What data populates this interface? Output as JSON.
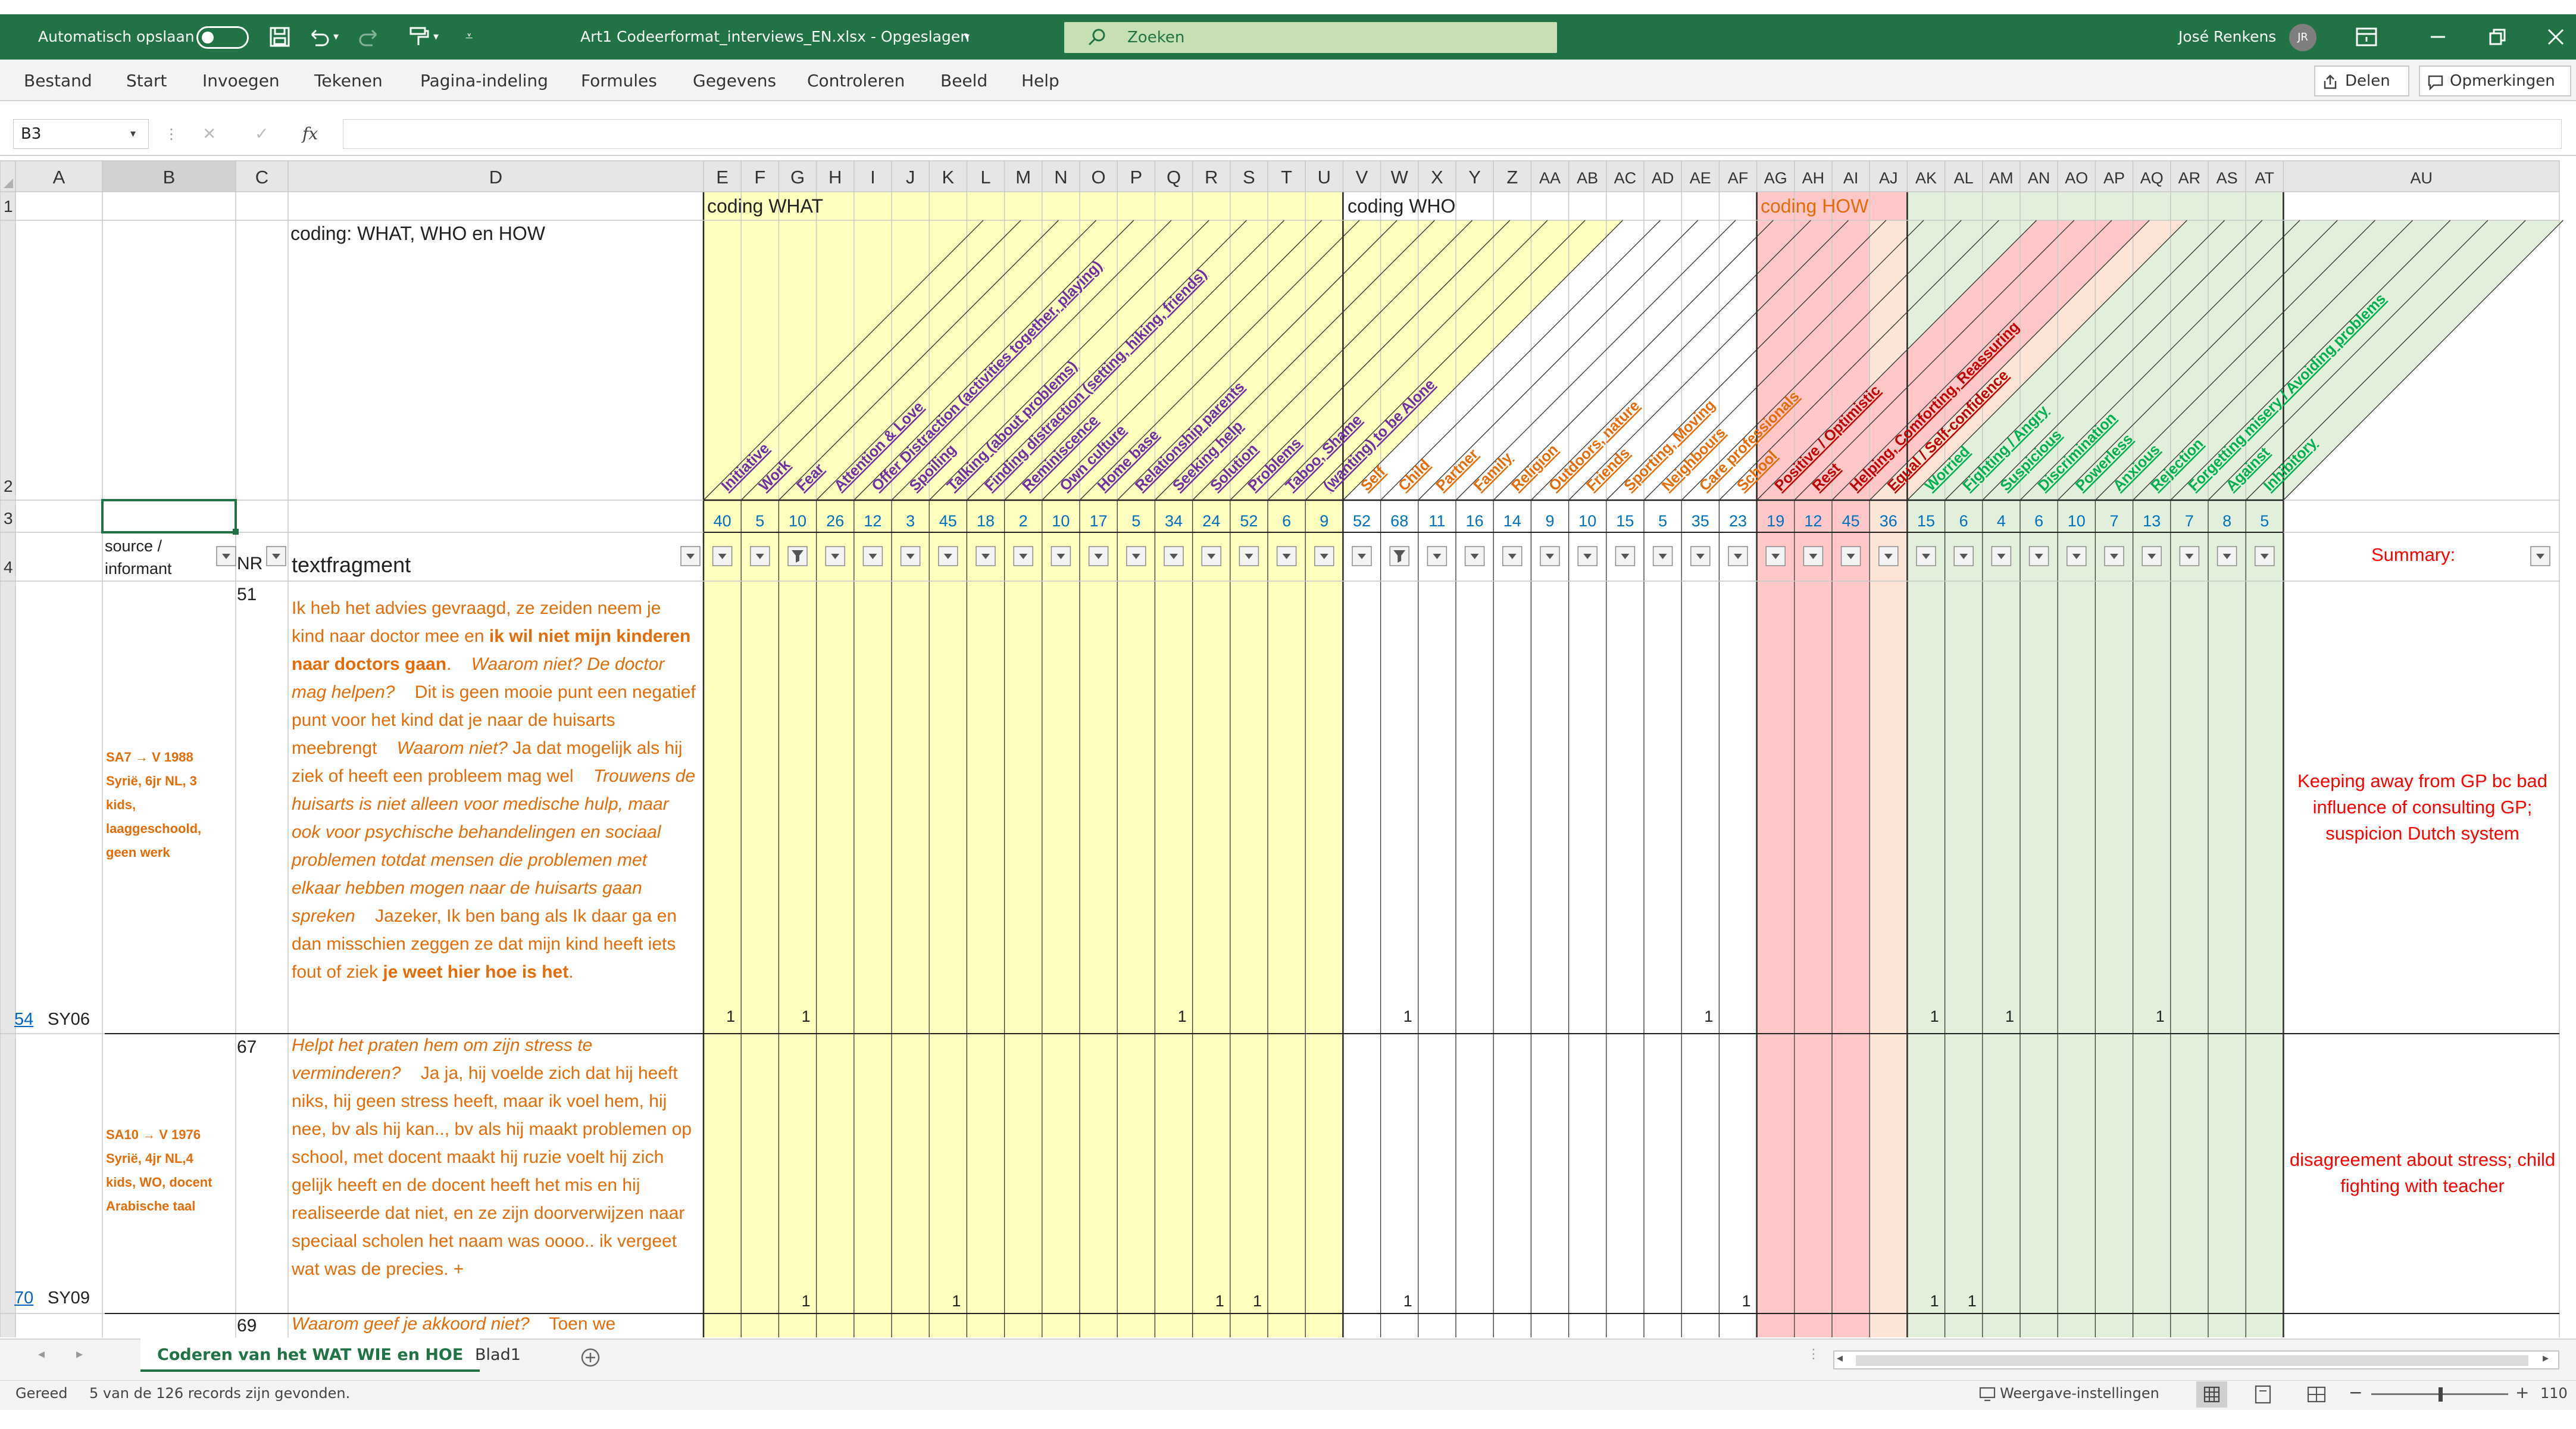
{
  "titlebar": {
    "autosave_label": "Automatisch opslaan",
    "autosave_state": "Uit",
    "file_title": "Art1 Codeerformat_interviews_EN.xlsx  -  Opgeslagen",
    "search_placeholder": "Zoeken",
    "user_name": "José Renkens",
    "user_initials": "JR"
  },
  "ribbon": {
    "tabs": [
      "Bestand",
      "Start",
      "Invoegen",
      "Tekenen",
      "Pagina-indeling",
      "Formules",
      "Gegevens",
      "Controleren",
      "Beeld",
      "Help"
    ],
    "share_label": "Delen",
    "comments_label": "Opmerkingen"
  },
  "formula_bar": {
    "name_box": "B3",
    "fx_label": "fx",
    "formula": ""
  },
  "column_letters": [
    "A",
    "B",
    "C",
    "D",
    "E",
    "F",
    "G",
    "H",
    "I",
    "J",
    "K",
    "L",
    "M",
    "N",
    "O",
    "P",
    "Q",
    "R",
    "S",
    "T",
    "U",
    "V",
    "W",
    "X",
    "Y",
    "Z",
    "AA",
    "AB",
    "AC",
    "AD",
    "AE",
    "AF",
    "AG",
    "AH",
    "AI",
    "AJ",
    "AK",
    "AL",
    "AM",
    "AN",
    "AO",
    "AP",
    "AQ",
    "AR",
    "AS",
    "AT",
    "AU"
  ],
  "row_numbers": {
    "r1": "1",
    "r2": "2",
    "r3": "3",
    "r4": "4",
    "r54": "54",
    "r70": "70"
  },
  "sheet": {
    "coding_what": "coding WHAT",
    "coding_who": "coding WHO",
    "coding_how": "coding HOW",
    "d2_title": "coding: WHAT, WHO en HOW",
    "header_source": "source /\ninformant",
    "header_nr": "NR",
    "header_textfragment": "textfragment",
    "header_summary": "Summary:",
    "code_labels": [
      "Initiative",
      "Work",
      "Fear",
      "Attention & Love",
      "Offer Distraction (activities together, playing)",
      "Spoiling",
      "Talking (about problems)",
      "Finding distraction (setting, hiking, friends)",
      "Reminiscence",
      "Own culture",
      "Home base",
      "Relationship parents",
      "Seeking help",
      "Solution",
      "Problems",
      "Taboo, Shame",
      "(wanting) to be Alone",
      "Self",
      "Child",
      "Partner",
      "Family",
      "Religion",
      "Outdoors, nature",
      "Friends",
      "Sporting, Moving",
      "Neighbours",
      "Care professionals",
      "School",
      "Positive / Optimistic",
      "Rest",
      "Helping, Comforting, Reassuring",
      "Equal / Self-confidence",
      "Worried",
      "Fighting / Angry",
      "Suspicious",
      "Discrimination",
      "Powerless",
      "Anxious",
      "Rejection",
      "Forgetting misery / Avoiding problems",
      "Against",
      "Inhibitory"
    ],
    "totals": [
      "40",
      "5",
      "10",
      "26",
      "12",
      "3",
      "45",
      "18",
      "2",
      "10",
      "17",
      "5",
      "34",
      "24",
      "52",
      "6",
      "9",
      "52",
      "68",
      "11",
      "16",
      "14",
      "9",
      "10",
      "15",
      "5",
      "35",
      "23",
      "19",
      "12",
      "45",
      "36",
      "15",
      "6",
      "4",
      "6",
      "10",
      "7",
      "13",
      "7",
      "8",
      "5"
    ],
    "record1": {
      "row_label": "54",
      "code": "SY06",
      "nr": "51",
      "source": "SA7 → V 1988\nSyrië, 6jr NL, 3\nkids,\nlaaggeschoold,\ngeen werk",
      "text_parts": [
        {
          "style": "n",
          "t": "Ik heb het advies gevraagd, ze zeiden neem je kind naar doctor mee en "
        },
        {
          "style": "b",
          "t": "ik wil niet mijn kinderen naar doctors gaan"
        },
        {
          "style": "n",
          "t": ".    "
        },
        {
          "style": "i",
          "t": "Waarom niet? De doctor mag helpen?"
        },
        {
          "style": "n",
          "t": "    Dit is geen mooie punt een negatief punt voor het kind dat je naar de huisarts meebrengt    "
        },
        {
          "style": "i",
          "t": "Waarom niet?"
        },
        {
          "style": "n",
          "t": " Ja dat mogelijk als hij ziek of heeft een probleem mag wel    "
        },
        {
          "style": "i",
          "t": "Trouwens de huisarts is niet alleen voor medische hulp, maar ook voor psychische behandelingen en sociaal problemen totdat mensen die problemen met elkaar hebben mogen naar de huisarts gaan spreken"
        },
        {
          "style": "n",
          "t": "    Jazeker, Ik ben bang als Ik daar ga en dan misschien zeggen ze dat mijn kind heeft iets fout of ziek "
        },
        {
          "style": "b",
          "t": "je weet hier hoe is het"
        },
        {
          "style": "n",
          "t": "."
        }
      ],
      "summary": "Keeping away from GP bc bad influence of consulting GP; suspicion Dutch system",
      "marks": {
        "E": "1",
        "G": "1",
        "Q": "1",
        "W": "1",
        "AE": "1",
        "AK": "1",
        "AM": "1",
        "AQ": "1"
      }
    },
    "record2": {
      "row_label": "70",
      "code": "SY09",
      "nr": "67",
      "source": "SA10 → V 1976\nSyrië, 4jr NL,4\nkids, WO, docent\nArabische taal",
      "text_parts": [
        {
          "style": "i",
          "t": "Helpt het praten hem om zijn stress te verminderen?"
        },
        {
          "style": "n",
          "t": "    Ja ja, hij voelde zich dat hij heeft niks, hij geen stress heeft, maar ik voel hem, hij nee, bv als hij kan.., bv als hij maakt problemen op school, met docent maakt hij ruzie voelt hij zich gelijk heeft en de docent heeft het mis en hij realiseerde dat niet, en ze zijn doorverwijzen naar speciaal scholen het naam was oooo.. ik vergeet wat was de precies. +"
        }
      ],
      "summary": "disagreement about stress; child fighting with teacher",
      "marks": {
        "G": "1",
        "K": "1",
        "R": "1",
        "S": "1",
        "W": "1",
        "AF": "1",
        "AK": "1",
        "AL": "1"
      }
    },
    "record3": {
      "nr": "69",
      "text_parts": [
        {
          "style": "i",
          "t": "Waarom geef je akkoord niet?"
        },
        {
          "style": "n",
          "t": "    Toen we"
        }
      ]
    }
  },
  "sheet_tabs": [
    "Coderen van het WAT WIE en HOE",
    "Blad1"
  ],
  "statusbar": {
    "ready": "Gereed",
    "records": "5 van de 126 records zijn gevonden.",
    "view_settings": "Weergave-instellingen",
    "zoom": "110"
  },
  "colors": {
    "excel_green": "#217346",
    "what_fill": "#ffffc0",
    "how_fill": "#ffc7c7",
    "how_light": "#fce4d6",
    "how_green": "#e2efda",
    "label_purple": "#7030a0",
    "label_orange": "#e46c0a",
    "label_red": "#c00000",
    "label_green": "#00b050",
    "total_blue": "#0070c0",
    "summary_red": "#ff0000"
  }
}
